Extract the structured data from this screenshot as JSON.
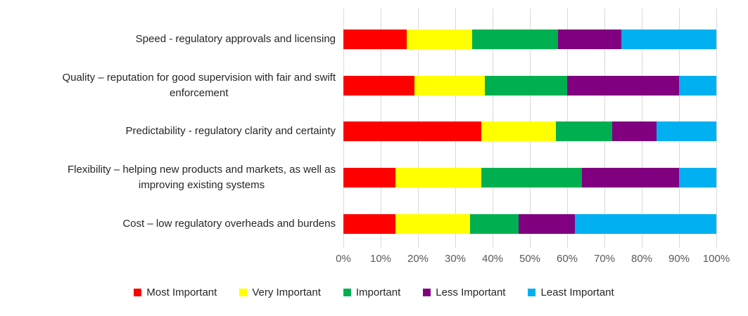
{
  "chart_data": {
    "type": "bar",
    "orientation": "horizontal",
    "stacked": true,
    "value_unit": "percent",
    "title": "",
    "categories": [
      "Speed - regulatory approvals and licensing",
      "Quality – reputation for good supervision with fair and swift enforcement",
      "Predictability - regulatory clarity and certainty",
      "Flexibility – helping new products and markets, as well as improving existing systems",
      "Cost – low regulatory overheads and burdens"
    ],
    "category_display_lines": [
      [
        "Speed - regulatory approvals and licensing"
      ],
      [
        "Quality – reputation for good supervision with fair and swift",
        "enforcement"
      ],
      [
        "Predictability - regulatory clarity and certainty"
      ],
      [
        "Flexibility – helping new products and markets, as well as",
        "improving existing systems"
      ],
      [
        "Cost – low regulatory overheads and burdens"
      ]
    ],
    "series": [
      {
        "name": "Most Important",
        "color": "#FF0000",
        "values": [
          17,
          19,
          37,
          14,
          14
        ]
      },
      {
        "name": "Very Important",
        "color": "#FFFF00",
        "values": [
          17.5,
          19,
          20,
          23,
          20
        ]
      },
      {
        "name": "Important",
        "color": "#00B050",
        "values": [
          23,
          22,
          15,
          27,
          13
        ]
      },
      {
        "name": "Less Important",
        "color": "#800080",
        "values": [
          17,
          30,
          12,
          26,
          15
        ]
      },
      {
        "name": "Least Important",
        "color": "#00B0F0",
        "values": [
          25.5,
          10,
          16,
          10,
          38
        ]
      }
    ],
    "x_axis": {
      "min": 0,
      "max": 100,
      "tick_labels": [
        "0%",
        "10%",
        "20%",
        "30%",
        "40%",
        "50%",
        "60%",
        "70%",
        "80%",
        "90%",
        "100%"
      ],
      "grid": true,
      "gridline_color": "#D9D9D9"
    },
    "legend_position": "bottom"
  }
}
